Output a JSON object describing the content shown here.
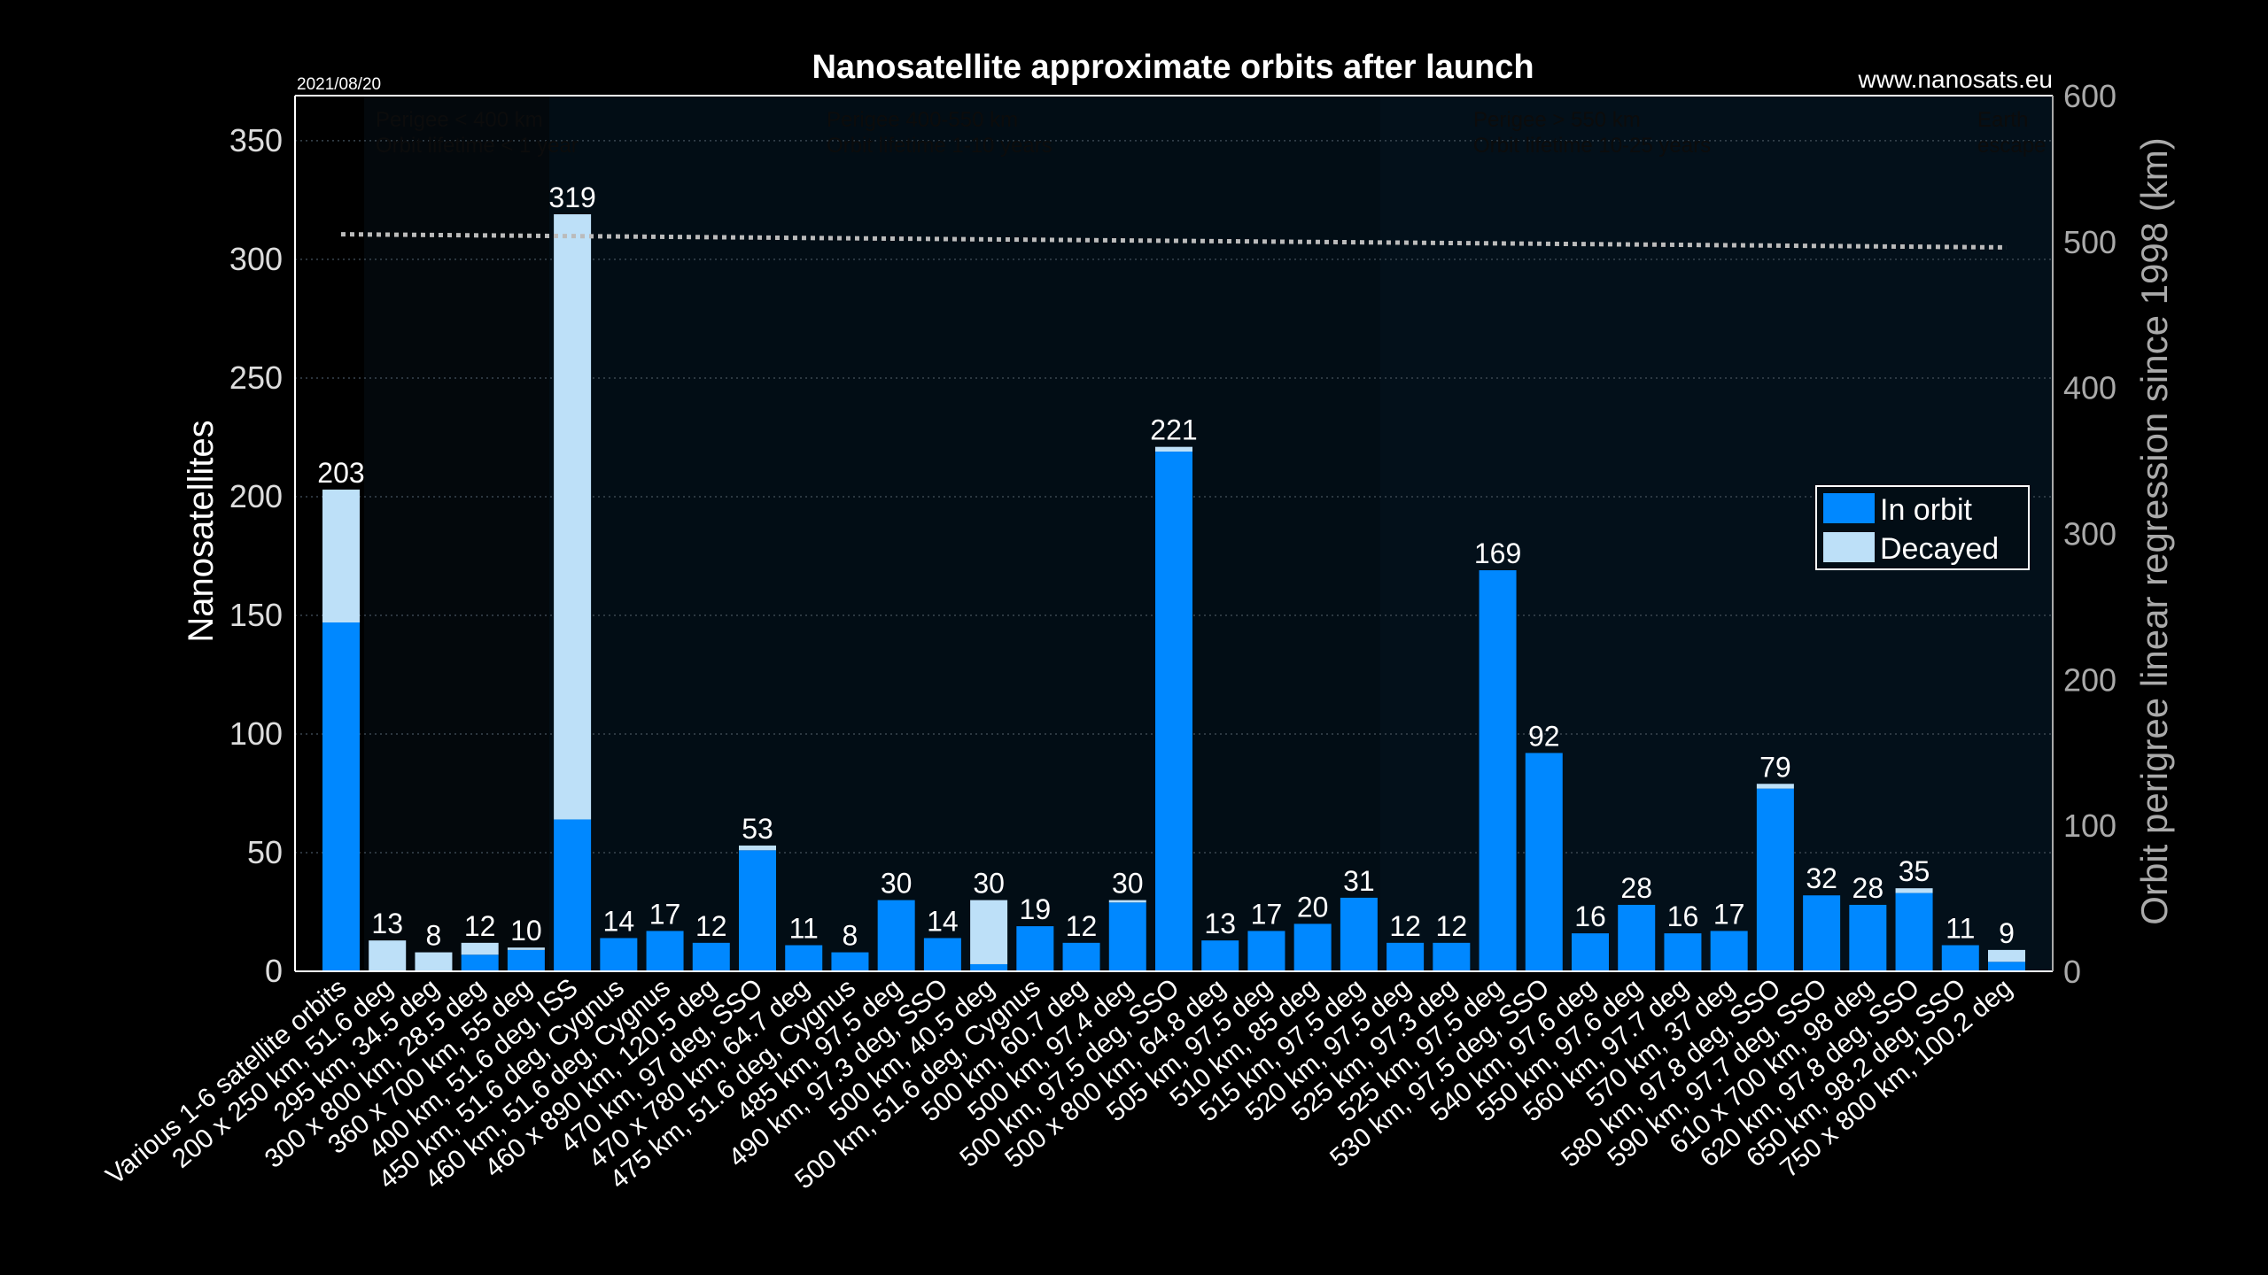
{
  "chart_data": {
    "type": "bar",
    "stacked": true,
    "title": "Nanosatellite approximate orbits after launch",
    "date": "2021/08/20",
    "source": "www.nanosats.eu",
    "ylabel": "Nanosatellites",
    "y2label": "Orbit perigree linear regression since 1998 (km)",
    "ylim": [
      0,
      369
    ],
    "y2lim": [
      0,
      600
    ],
    "yticks": [
      0,
      50,
      100,
      150,
      200,
      250,
      300,
      350
    ],
    "y2ticks": [
      0,
      100,
      200,
      300,
      400,
      500,
      600
    ],
    "grid": true,
    "legend_position": "right",
    "colors": {
      "in_orbit": "#0088ff",
      "decayed": "#bde0f8",
      "background": "#000000",
      "plot": "#020d15",
      "regression": "#bbbbbb"
    },
    "series": [
      {
        "name": "In orbit"
      },
      {
        "name": "Decayed"
      }
    ],
    "regions": [
      {
        "line1": "Perigee < 400 km",
        "line2": "Orbit lifetime < 1 year"
      },
      {
        "line1": "Perigee 400-550 km",
        "line2": "Orbit lifetime 1-10 years"
      },
      {
        "line1": "Perigee > 550 km",
        "line2": "Orbit lifetime 10-25 years"
      },
      {
        "line1": "Earth",
        "line2": "escape"
      }
    ],
    "regression_line": {
      "start": 505,
      "end": 496
    },
    "categories": [
      "Various 1-6 satellite orbits",
      "200 x 250 km, 51.6 deg",
      "295 km, 34.5 deg",
      "300 x 800 km, 28.5 deg",
      "360 x 700 km, 55 deg",
      "400 km, 51.6 deg, ISS",
      "450 km, 51.6 deg, Cygnus",
      "460 km, 51.6 deg, Cygnus",
      "460 x 890 km, 120.5 deg",
      "470 km, 97 deg, SSO",
      "470 x 780 km, 64.7 deg",
      "475 km, 51.6 deg, Cygnus",
      "485 km, 97.5 deg",
      "490 km, 97.3 deg, SSO",
      "500 km, 40.5 deg",
      "500 km, 51.6 deg, Cygnus",
      "500 km, 60.7 deg",
      "500 km, 97.4 deg",
      "500 km, 97.5 deg, SSO",
      "500 x 800 km, 64.8 deg",
      "505 km, 97.5 deg",
      "510 km, 85 deg",
      "515 km, 97.5 deg",
      "520 km, 97.5 deg",
      "525 km, 97.3 deg",
      "525 km, 97.5 deg",
      "530 km, 97.5 deg, SSO",
      "540 km, 97.6 deg",
      "550 km, 97.6 deg",
      "560 km, 97.7 deg",
      "570 km, 37 deg",
      "580 km, 97.8 deg, SSO",
      "590 km, 97.7 deg, SSO",
      "610 x 700 km, 98 deg",
      "620 km, 97.8 deg, SSO",
      "650 km, 98.2 deg, SSO",
      "750 x 800 km, 100.2 deg"
    ],
    "totals": [
      203,
      13,
      8,
      12,
      10,
      319,
      14,
      17,
      12,
      53,
      11,
      8,
      30,
      14,
      30,
      19,
      12,
      30,
      221,
      13,
      17,
      20,
      31,
      12,
      12,
      169,
      92,
      16,
      28,
      16,
      17,
      79,
      32,
      28,
      35,
      11,
      9
    ],
    "in_orbit": [
      147,
      0,
      0,
      7,
      9,
      64,
      14,
      17,
      12,
      51,
      11,
      8,
      30,
      14,
      3,
      19,
      12,
      29,
      219,
      13,
      17,
      20,
      31,
      12,
      12,
      169,
      92,
      16,
      28,
      16,
      17,
      77,
      32,
      28,
      33,
      11,
      4
    ]
  }
}
